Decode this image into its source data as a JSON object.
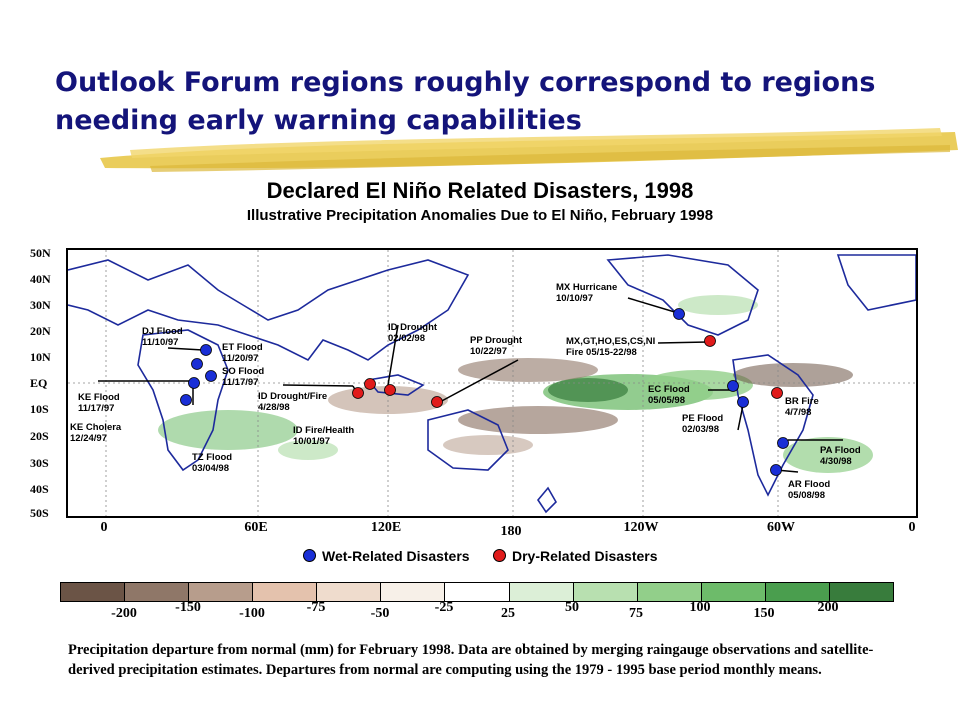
{
  "slide": {
    "title": "Outlook Forum regions roughly correspond to regions needing early warning capabilities"
  },
  "figure": {
    "title": "Declared El Niño Related Disasters, 1998",
    "subtitle": "Illustrative Precipitation Anomalies Due to El Niño, February 1998"
  },
  "map": {
    "lat_labels": [
      "50N",
      "40N",
      "30N",
      "20N",
      "10N",
      "EQ",
      "10S",
      "20S",
      "30S",
      "40S",
      "50S"
    ],
    "lon_labels": [
      "0",
      "60E",
      "120E",
      "180",
      "120W",
      "60W",
      "0"
    ],
    "colors": {
      "wet": "#1a2fd6",
      "dry": "#e01b1b",
      "land_outline": "#1d2a9c"
    },
    "disasters": [
      {
        "label": "DJ Flood\n11/10/97",
        "type": "wet"
      },
      {
        "label": "ET Flood\n11/20/97",
        "type": "wet"
      },
      {
        "label": "SO Flood\n11/17/97",
        "type": "wet"
      },
      {
        "label": "KE Flood\n11/17/97",
        "type": "wet"
      },
      {
        "label": "KE Cholera\n12/24/97",
        "type": "wet"
      },
      {
        "label": "TZ Flood\n03/04/98",
        "type": "wet"
      },
      {
        "label": "ID Drought/Fire\n4/28/98",
        "type": "dry"
      },
      {
        "label": "ID Fire/Health\n10/01/97",
        "type": "dry"
      },
      {
        "label": "ID Drought\n02/02/98",
        "type": "dry"
      },
      {
        "label": "PP Drought\n10/22/97",
        "type": "dry"
      },
      {
        "label": "MX Hurricane\n10/10/97",
        "type": "wet"
      },
      {
        "label": "MX,GT,HO,ES,CS,NI\nFire 05/15-22/98",
        "type": "dry"
      },
      {
        "label": "EC Flood\n05/05/98",
        "type": "wet"
      },
      {
        "label": "PE Flood\n02/03/98",
        "type": "wet"
      },
      {
        "label": "BR Fire\n4/7/98",
        "type": "dry"
      },
      {
        "label": "PA Flood\n4/30/98",
        "type": "wet"
      },
      {
        "label": "AR Flood\n05/08/98",
        "type": "wet"
      }
    ]
  },
  "legend": {
    "wet_label": "Wet-Related Disasters",
    "dry_label": "Dry-Related Disasters"
  },
  "colorbar": {
    "colors": [
      "#6b5446",
      "#8f7768",
      "#b79d8c",
      "#e4c2ad",
      "#efdccd",
      "#f7f0e8",
      "#ffffff",
      "#dcefd7",
      "#b8e0b0",
      "#92cf8a",
      "#6dbb6a",
      "#4a9e4e",
      "#387c3c"
    ],
    "labels": [
      "-200",
      "-150",
      "-100",
      "-75",
      "-50",
      "-25",
      "25",
      "50",
      "75",
      "100",
      "150",
      "200"
    ]
  },
  "caption": "Precipitation departure from normal (mm) for February 1998. Data are obtained by merging raingauge observations and satellite-derived precipitation estimates. Departures from normal are computing using the 1979 - 1995 base period monthly means."
}
